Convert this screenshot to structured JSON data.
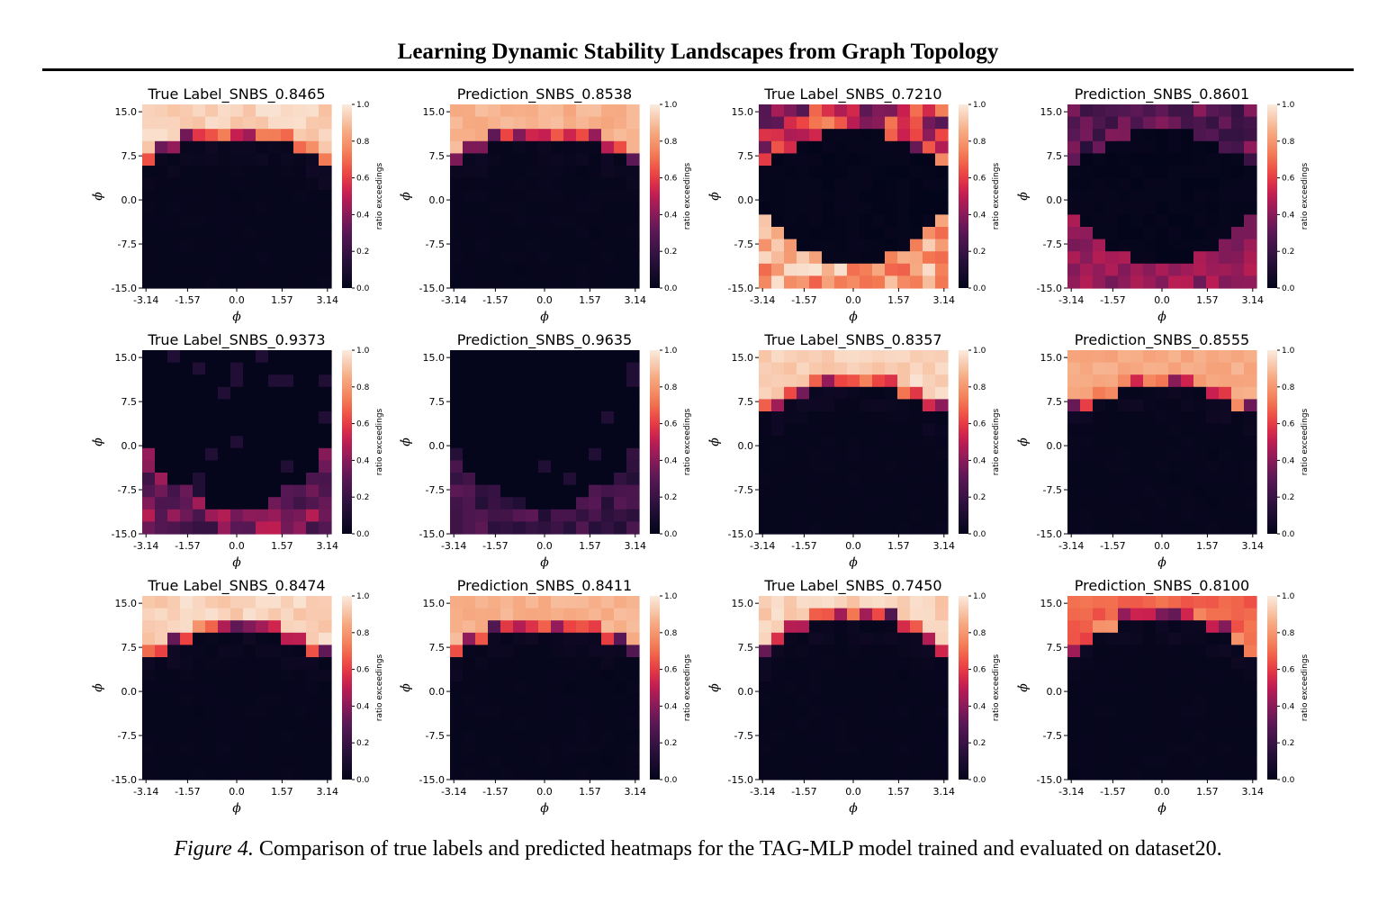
{
  "header": {
    "running_title": "Learning Dynamic Stability Landscapes from Graph Topology"
  },
  "figure": {
    "caption_label": "Figure 4.",
    "caption_text": "Comparison of true labels and predicted heatmaps for the TAG-MLP model trained and evaluated on dataset20."
  },
  "chart_data": [
    {
      "type": "heatmap",
      "title": "True Label_SNBS_0.8465",
      "xlabel": "ϕ",
      "ylabel": "ϕ̇",
      "xticks": [
        "-3.14",
        "-1.57",
        "0.0",
        "1.57",
        "3.14"
      ],
      "yticks": [
        "15.0",
        "7.5",
        "0.0",
        "-7.5",
        "-15.0"
      ],
      "xlim": [
        -3.14,
        3.14
      ],
      "ylim": [
        -15,
        15
      ],
      "colorbar": {
        "label": "ratio exceedings",
        "ticks": [
          "1.0",
          "0.8",
          "0.6",
          "0.4",
          "0.2",
          "0.0"
        ],
        "range": [
          0,
          1
        ]
      },
      "pattern": {
        "kind": "top",
        "a": 0.75,
        "b": 0.17,
        "fill": 0.98,
        "edge": 0.55,
        "noise": 0.08
      }
    },
    {
      "type": "heatmap",
      "title": "Prediction_SNBS_0.8538",
      "xlabel": "ϕ",
      "ylabel": "ϕ̇",
      "xticks": [
        "-3.14",
        "-1.57",
        "0.0",
        "1.57",
        "3.14"
      ],
      "yticks": [
        "15.0",
        "7.5",
        "0.0",
        "-7.5",
        "-15.0"
      ],
      "xlim": [
        -3.14,
        3.14
      ],
      "ylim": [
        -15,
        15
      ],
      "colorbar": {
        "label": "ratio exceedings",
        "ticks": [
          "1.0",
          "0.8",
          "0.6",
          "0.4",
          "0.2",
          "0.0"
        ],
        "range": [
          0,
          1
        ]
      },
      "pattern": {
        "kind": "top",
        "a": 0.75,
        "b": 0.18,
        "fill": 0.9,
        "edge": 0.5,
        "noise": 0.06
      }
    },
    {
      "type": "heatmap",
      "title": "True Label_SNBS_0.7210",
      "xlabel": "ϕ",
      "ylabel": "ϕ̇",
      "xticks": [
        "-3.14",
        "-1.57",
        "0.0",
        "1.57",
        "3.14"
      ],
      "yticks": [
        "15.0",
        "7.5",
        "0.0",
        "-7.5",
        "-15.0"
      ],
      "xlim": [
        -3.14,
        3.14
      ],
      "ylim": [
        -15,
        15
      ],
      "colorbar": {
        "label": "ratio exceedings",
        "ticks": [
          "1.0",
          "0.8",
          "0.6",
          "0.4",
          "0.2",
          "0.0"
        ],
        "range": [
          0,
          1
        ]
      },
      "pattern": {
        "kind": "eye",
        "top": 0.55,
        "bot": 0.9,
        "noise": 0.25
      }
    },
    {
      "type": "heatmap",
      "title": "Prediction_SNBS_0.8601",
      "xlabel": "ϕ",
      "ylabel": "ϕ̇",
      "xticks": [
        "-3.14",
        "-1.57",
        "0.0",
        "1.57",
        "3.14"
      ],
      "yticks": [
        "15.0",
        "7.5",
        "0.0",
        "-7.5",
        "-15.0"
      ],
      "xlim": [
        -3.14,
        3.14
      ],
      "ylim": [
        -15,
        15
      ],
      "colorbar": {
        "label": "ratio exceedings",
        "ticks": [
          "1.0",
          "0.8",
          "0.6",
          "0.4",
          "0.2",
          "0.0"
        ],
        "range": [
          0,
          1
        ]
      },
      "pattern": {
        "kind": "eye",
        "top": 0.3,
        "bot": 0.45,
        "noise": 0.03
      }
    },
    {
      "type": "heatmap",
      "title": "True Label_SNBS_0.9373",
      "xlabel": "ϕ",
      "ylabel": "ϕ̇",
      "xticks": [
        "-3.14",
        "-1.57",
        "0.0",
        "1.57",
        "3.14"
      ],
      "yticks": [
        "15.0",
        "7.5",
        "0.0",
        "-7.5",
        "-15.0"
      ],
      "xlim": [
        -3.14,
        3.14
      ],
      "ylim": [
        -15,
        15
      ],
      "colorbar": {
        "label": "ratio exceedings",
        "ticks": [
          "1.0",
          "0.8",
          "0.6",
          "0.4",
          "0.2",
          "0.0"
        ],
        "range": [
          0,
          1
        ]
      },
      "pattern": {
        "kind": "bottom",
        "v": 0.35,
        "noise": 0.2
      }
    },
    {
      "type": "heatmap",
      "title": "Prediction_SNBS_0.9635",
      "xlabel": "ϕ",
      "ylabel": "ϕ̇",
      "xticks": [
        "-3.14",
        "-1.57",
        "0.0",
        "1.57",
        "3.14"
      ],
      "yticks": [
        "15.0",
        "7.5",
        "0.0",
        "-7.5",
        "-15.0"
      ],
      "xlim": [
        -3.14,
        3.14
      ],
      "ylim": [
        -15,
        15
      ],
      "colorbar": {
        "label": "ratio exceedings",
        "ticks": [
          "1.0",
          "0.8",
          "0.6",
          "0.4",
          "0.2",
          "0.0"
        ],
        "range": [
          0,
          1
        ]
      },
      "pattern": {
        "kind": "bottom",
        "v": 0.22,
        "noise": 0.03
      }
    },
    {
      "type": "heatmap",
      "title": "True Label_SNBS_0.8357",
      "xlabel": "ϕ",
      "ylabel": "ϕ̇",
      "xticks": [
        "-3.14",
        "-1.57",
        "0.0",
        "1.57",
        "3.14"
      ],
      "yticks": [
        "15.0",
        "7.5",
        "0.0",
        "-7.5",
        "-15.0"
      ],
      "xlim": [
        -3.14,
        3.14
      ],
      "ylim": [
        -15,
        15
      ],
      "colorbar": {
        "label": "ratio exceedings",
        "ticks": [
          "1.0",
          "0.8",
          "0.6",
          "0.4",
          "0.2",
          "0.0"
        ],
        "range": [
          0,
          1
        ]
      },
      "pattern": {
        "kind": "top",
        "a": 0.72,
        "b": 0.2,
        "fill": 0.98,
        "edge": 0.55,
        "noise": 0.08
      }
    },
    {
      "type": "heatmap",
      "title": "Prediction_SNBS_0.8555",
      "xlabel": "ϕ",
      "ylabel": "ϕ̇",
      "xticks": [
        "-3.14",
        "-1.57",
        "0.0",
        "1.57",
        "3.14"
      ],
      "yticks": [
        "15.0",
        "7.5",
        "0.0",
        "-7.5",
        "-15.0"
      ],
      "xlim": [
        -3.14,
        3.14
      ],
      "ylim": [
        -15,
        15
      ],
      "colorbar": {
        "label": "ratio exceedings",
        "ticks": [
          "1.0",
          "0.8",
          "0.6",
          "0.4",
          "0.2",
          "0.0"
        ],
        "range": [
          0,
          1
        ]
      },
      "pattern": {
        "kind": "top",
        "a": 0.72,
        "b": 0.2,
        "fill": 0.88,
        "edge": 0.6,
        "noise": 0.06
      }
    },
    {
      "type": "heatmap",
      "title": "True Label_SNBS_0.8474",
      "xlabel": "ϕ",
      "ylabel": "ϕ̇",
      "xticks": [
        "-3.14",
        "-1.57",
        "0.0",
        "1.57",
        "3.14"
      ],
      "yticks": [
        "15.0",
        "7.5",
        "0.0",
        "-7.5",
        "-15.0"
      ],
      "xlim": [
        -3.14,
        3.14
      ],
      "ylim": [
        -15,
        15
      ],
      "colorbar": {
        "label": "ratio exceedings",
        "ticks": [
          "1.0",
          "0.8",
          "0.6",
          "0.4",
          "0.2",
          "0.0"
        ],
        "range": [
          0,
          1
        ]
      },
      "pattern": {
        "kind": "top",
        "a": 0.72,
        "b": 0.2,
        "fill": 0.98,
        "edge": 0.55,
        "noise": 0.08
      }
    },
    {
      "type": "heatmap",
      "title": "Prediction_SNBS_0.8411",
      "xlabel": "ϕ",
      "ylabel": "ϕ̇",
      "xticks": [
        "-3.14",
        "-1.57",
        "0.0",
        "1.57",
        "3.14"
      ],
      "yticks": [
        "15.0",
        "7.5",
        "0.0",
        "-7.5",
        "-15.0"
      ],
      "xlim": [
        -3.14,
        3.14
      ],
      "ylim": [
        -15,
        15
      ],
      "colorbar": {
        "label": "ratio exceedings",
        "ticks": [
          "1.0",
          "0.8",
          "0.6",
          "0.4",
          "0.2",
          "0.0"
        ],
        "range": [
          0,
          1
        ]
      },
      "pattern": {
        "kind": "top",
        "a": 0.74,
        "b": 0.18,
        "fill": 0.9,
        "edge": 0.5,
        "noise": 0.06
      }
    },
    {
      "type": "heatmap",
      "title": "True Label_SNBS_0.7450",
      "xlabel": "ϕ",
      "ylabel": "ϕ̇",
      "xticks": [
        "-3.14",
        "-1.57",
        "0.0",
        "1.57",
        "3.14"
      ],
      "yticks": [
        "15.0",
        "7.5",
        "0.0",
        "-7.5",
        "-15.0"
      ],
      "xlim": [
        -3.14,
        3.14
      ],
      "ylim": [
        -15,
        15
      ],
      "colorbar": {
        "label": "ratio exceedings",
        "ticks": [
          "1.0",
          "0.8",
          "0.6",
          "0.4",
          "0.2",
          "0.0"
        ],
        "range": [
          0,
          1
        ]
      },
      "pattern": {
        "kind": "top",
        "a": 0.63,
        "b": 0.1,
        "fill": 0.98,
        "edge": 0.5,
        "noise": 0.08
      }
    },
    {
      "type": "heatmap",
      "title": "Prediction_SNBS_0.8100",
      "xlabel": "ϕ",
      "ylabel": "ϕ̇",
      "xticks": [
        "-3.14",
        "-1.57",
        "0.0",
        "1.57",
        "3.14"
      ],
      "yticks": [
        "15.0",
        "7.5",
        "0.0",
        "-7.5",
        "-15.0"
      ],
      "xlim": [
        -3.14,
        3.14
      ],
      "ylim": [
        -15,
        15
      ],
      "colorbar": {
        "label": "ratio exceedings",
        "ticks": [
          "1.0",
          "0.8",
          "0.6",
          "0.4",
          "0.2",
          "0.0"
        ],
        "range": [
          0,
          1
        ]
      },
      "pattern": {
        "kind": "top",
        "a": 0.63,
        "b": 0.1,
        "fill": 0.72,
        "edge": 0.55,
        "noise": 0.08
      }
    }
  ]
}
